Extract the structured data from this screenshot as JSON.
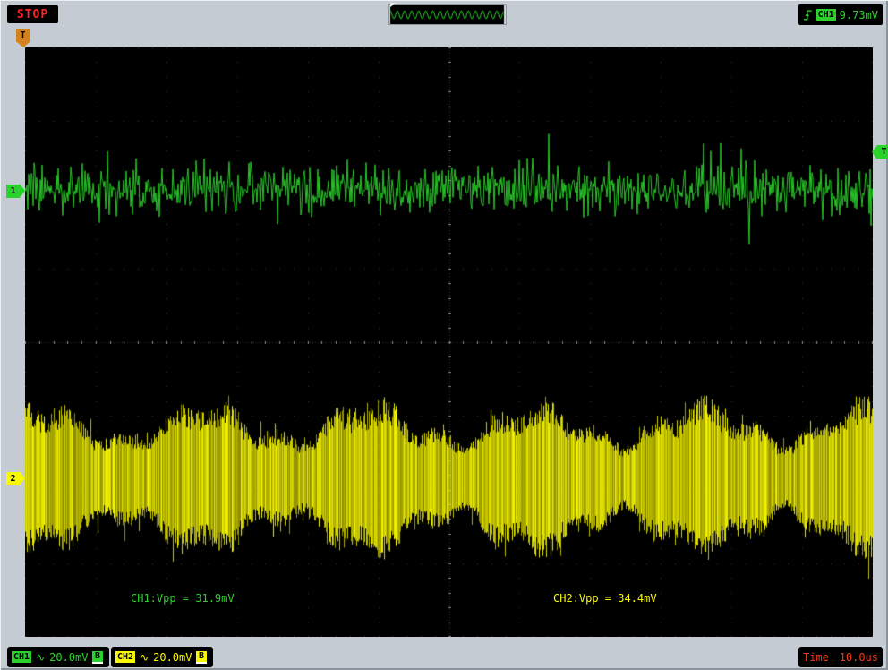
{
  "top_bar": {
    "run_state": "STOP",
    "trigger": {
      "source": "CH1",
      "level": "9.73mV",
      "edge_icon": "rising-edge-icon"
    }
  },
  "screen": {
    "markers": {
      "trigger_time": "T",
      "trigger_level": "T",
      "ch1": "1",
      "ch2": "2"
    },
    "annotations": {
      "ch1_vpp": "CH1:Vpp = 31.9mV",
      "ch2_vpp": "CH2:Vpp = 34.4mV"
    }
  },
  "bottom_bar": {
    "ch1": {
      "label": "CH1",
      "coupling": "∿",
      "scale": "20.0mV",
      "bandwidth": "B"
    },
    "ch2": {
      "label": "CH2",
      "coupling": "∿",
      "scale": "20.0mV",
      "bandwidth": "B"
    },
    "timebase": {
      "label": "Time",
      "value": "10.0us"
    }
  },
  "colors": {
    "ch1": "#2bd22b",
    "ch2": "#f8f800",
    "stop_text": "#ff2222",
    "time_text": "#f23b18",
    "trigger_time_marker": "#d2821e",
    "bezel": "#c4cbd2",
    "screen_bg": "#000000",
    "grid_dot": "#3c3c3c",
    "grid_tick": "#8a8a8a",
    "grid_center_dot": "#2e2e2e"
  },
  "chart_data": {
    "type": "line",
    "title": "Dual-channel oscilloscope capture",
    "x_axis": {
      "divs": 12,
      "time_per_div": "10.0us"
    },
    "y_axis": {
      "divs": 8,
      "volts_per_div": "20.0mV"
    },
    "grid": "dotted",
    "trigger_level_div_from_top": 1.42,
    "series": [
      {
        "name": "CH1",
        "color": "#2bd22b",
        "kind": "broadband-noise",
        "vpp_measured": "31.9mV",
        "center_div_from_top": 1.95,
        "noise_sigma_div": 0.16,
        "spike_prob": 0.06,
        "spike_max_div": 0.5,
        "seed": 1337
      },
      {
        "name": "CH2",
        "color": "#f8f800",
        "kind": "am-modulated-noise-band",
        "vpp_measured": "34.4mV",
        "center_div_from_top": 5.85,
        "envelope_base_div": 0.66,
        "envelope_mod": [
          {
            "amp_div": 0.2,
            "period_div": 2.35,
            "phase": 1.1
          },
          {
            "amp_div": 0.1,
            "period_div": 0.75,
            "phase": 2.6
          }
        ],
        "jitter_div": 0.08,
        "seed": 777
      }
    ],
    "preview": {
      "kind": "sine",
      "color": "#2bd22b",
      "cycles": 16
    }
  }
}
